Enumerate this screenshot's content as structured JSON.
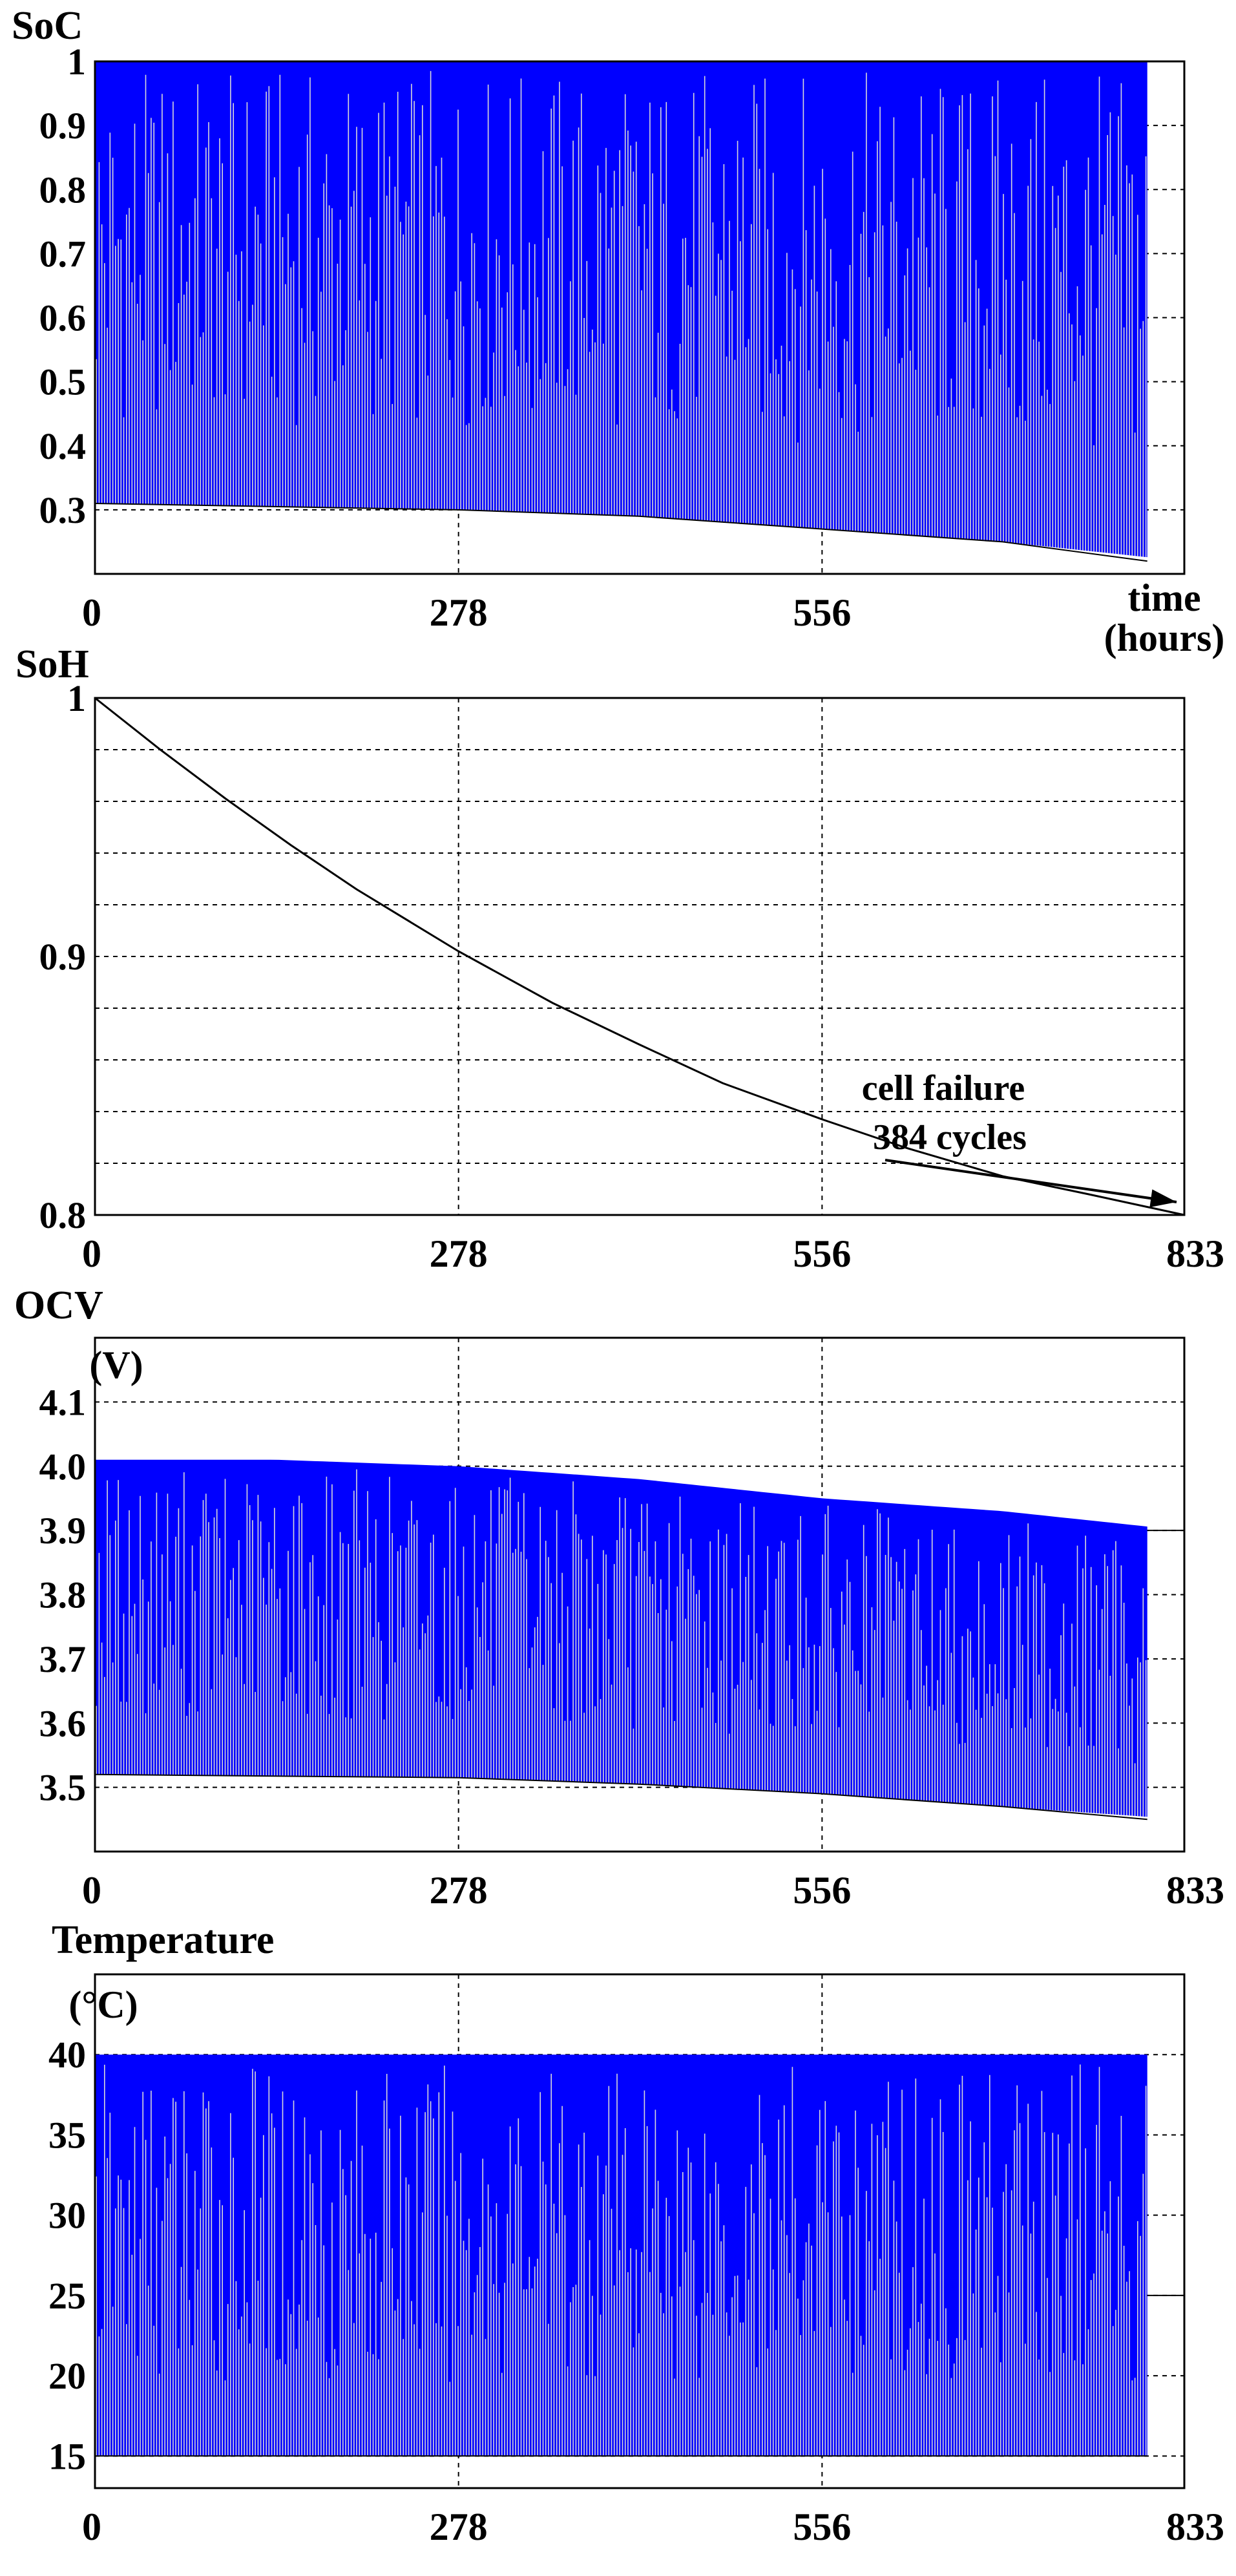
{
  "chart_data": [
    {
      "type": "line",
      "title": "SoC",
      "xlabel": "time (hours)",
      "xlabel_lines": [
        "time",
        "(hours)"
      ],
      "ylabel": "",
      "xlim": [
        0,
        833
      ],
      "ylim": [
        0.2,
        1
      ],
      "x_ticks": [
        0,
        278,
        556
      ],
      "x_tick_labels": [
        "0",
        "278",
        "556"
      ],
      "y_ticks": [
        0.3,
        0.4,
        0.5,
        0.6,
        0.7,
        0.8,
        0.9,
        1
      ],
      "y_tick_labels": [
        "0.3",
        "0.4",
        "0.5",
        "0.6",
        "0.7",
        "0.8",
        "0.9",
        "1"
      ],
      "grid": true,
      "series": [
        {
          "color": "#0000ff",
          "style": "dense charge/discharge cycling",
          "x_end": 833,
          "cycles": 384,
          "upper_envelope": [
            [
              0,
              1.0
            ],
            [
              833,
              1.0
            ]
          ],
          "lower_envelope": [
            [
              0,
              0.31
            ],
            [
              278,
              0.3
            ],
            [
              416,
              0.29
            ],
            [
              556,
              0.27
            ],
            [
              694,
              0.25
            ],
            [
              833,
              0.22
            ]
          ]
        }
      ]
    },
    {
      "type": "line",
      "title": "SoH",
      "xlabel": "",
      "ylabel": "",
      "xlim": [
        0,
        833
      ],
      "ylim": [
        0.8,
        1
      ],
      "x_ticks": [
        0,
        278,
        556,
        833
      ],
      "x_tick_labels": [
        "0",
        "278",
        "556",
        "833"
      ],
      "y_ticks": [
        0.8,
        0.9,
        1
      ],
      "y_tick_labels": [
        "0.8",
        "0.9",
        "1"
      ],
      "grid": true,
      "series": [
        {
          "color": "#000000",
          "points": [
            [
              0,
              1.0
            ],
            [
              50,
              0.98
            ],
            [
              100,
              0.961
            ],
            [
              150,
              0.943
            ],
            [
              200,
              0.926
            ],
            [
              278,
              0.902
            ],
            [
              350,
              0.882
            ],
            [
              416,
              0.866
            ],
            [
              480,
              0.851
            ],
            [
              556,
              0.837
            ],
            [
              620,
              0.826
            ],
            [
              694,
              0.815
            ],
            [
              760,
              0.808
            ],
            [
              833,
              0.8
            ]
          ]
        }
      ],
      "annotations": [
        "cell failure",
        "384 cycles"
      ]
    },
    {
      "type": "line",
      "title": "OCV",
      "xlabel": "",
      "ylabel": "(V)",
      "xlim": [
        0,
        833
      ],
      "ylim": [
        3.4,
        4.2
      ],
      "x_ticks": [
        0,
        278,
        556,
        833
      ],
      "x_tick_labels": [
        "0",
        "278",
        "556",
        "833"
      ],
      "y_ticks": [
        3.5,
        3.6,
        3.7,
        3.8,
        3.9,
        4.0,
        4.1
      ],
      "y_tick_labels": [
        "3.5",
        "3.6",
        "3.7",
        "3.8",
        "3.9",
        "4.0",
        "4.1"
      ],
      "grid": true,
      "series": [
        {
          "color": "#0000ff",
          "style": "dense charge/discharge cycling",
          "x_end": 833,
          "cycles": 384,
          "upper_envelope": [
            [
              0,
              4.01
            ],
            [
              139,
              4.01
            ],
            [
              278,
              4.0
            ],
            [
              416,
              3.98
            ],
            [
              556,
              3.95
            ],
            [
              694,
              3.93
            ],
            [
              833,
              3.9
            ]
          ],
          "lower_envelope": [
            [
              0,
              3.52
            ],
            [
              278,
              3.515
            ],
            [
              416,
              3.505
            ],
            [
              556,
              3.49
            ],
            [
              694,
              3.47
            ],
            [
              833,
              3.45
            ]
          ]
        }
      ]
    },
    {
      "type": "line",
      "title": "Temperature",
      "xlabel": "",
      "ylabel": "(°C)",
      "xlim": [
        0,
        833
      ],
      "ylim": [
        13,
        45
      ],
      "x_ticks": [
        0,
        278,
        556,
        833
      ],
      "x_tick_labels": [
        "0",
        "278",
        "556",
        "833"
      ],
      "y_ticks": [
        15,
        20,
        25,
        30,
        35,
        40
      ],
      "y_tick_labels": [
        "15",
        "20",
        "25",
        "30",
        "35",
        "40"
      ],
      "grid": true,
      "series": [
        {
          "color": "#0000ff",
          "style": "dense charge/discharge cycling",
          "x_end": 833,
          "cycles": 384,
          "upper_envelope": [
            [
              0,
              40
            ],
            [
              833,
              40
            ]
          ],
          "lower_envelope": [
            [
              0,
              15
            ],
            [
              833,
              15
            ]
          ]
        }
      ]
    }
  ]
}
